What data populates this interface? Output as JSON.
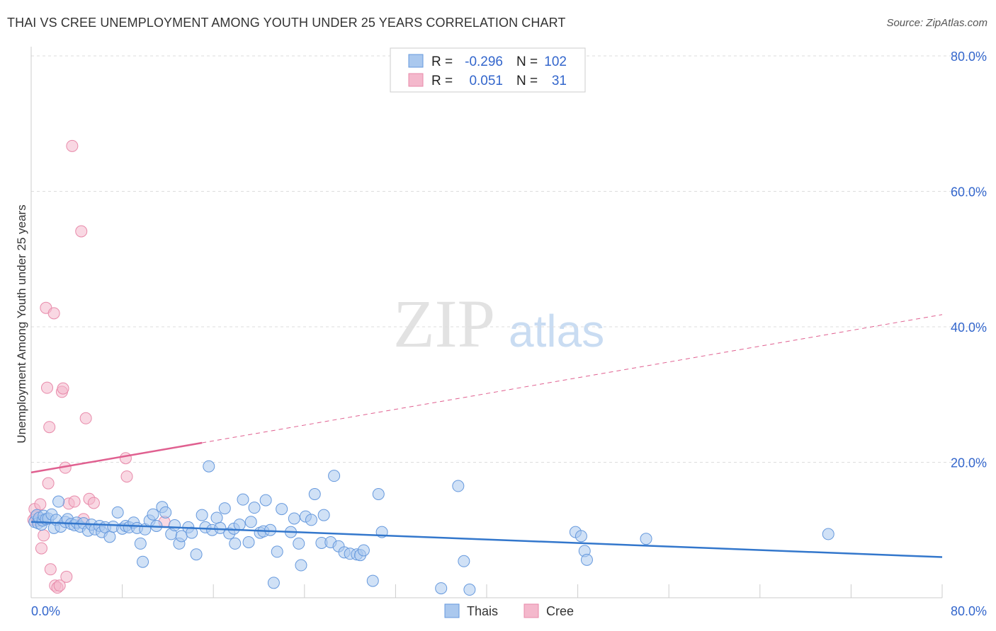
{
  "title": "THAI VS CREE UNEMPLOYMENT AMONG YOUTH UNDER 25 YEARS CORRELATION CHART",
  "source": "Source: ZipAtlas.com",
  "watermark": {
    "zip": "ZIP",
    "atlas": "atlas"
  },
  "colors": {
    "thais_fill": "#aac8ee",
    "thais_stroke": "#6699dd",
    "thais_line": "#3377cc",
    "cree_fill": "#f4b8cc",
    "cree_stroke": "#e88aaa",
    "cree_line": "#e06090",
    "value_blue": "#3366cc",
    "grid": "#dddddd"
  },
  "legend_box": {
    "rows": [
      {
        "r_label": "R =",
        "r_value": "-0.296",
        "n_label": "N =",
        "n_value": "102"
      },
      {
        "r_label": "R =",
        "r_value": "0.051",
        "n_label": "N =",
        "n_value": "31"
      }
    ]
  },
  "bottom_legend": {
    "thais": "Thais",
    "cree": "Cree"
  },
  "chart_data": {
    "type": "scatter",
    "title": "THAI VS CREE UNEMPLOYMENT AMONG YOUTH UNDER 25 YEARS CORRELATION CHART",
    "xlabel": "",
    "ylabel": "Unemployment Among Youth under 25 years",
    "xlim": [
      0,
      80
    ],
    "ylim": [
      0,
      80
    ],
    "x_tick_labels": [
      "0.0%",
      "80.0%"
    ],
    "y_tick_labels": [
      "20.0%",
      "40.0%",
      "60.0%",
      "80.0%"
    ],
    "y_ticks": [
      20,
      40,
      60,
      80
    ],
    "grid": true,
    "series": [
      {
        "name": "Thais",
        "r": -0.296,
        "n": 102,
        "trend": {
          "x": [
            0,
            80
          ],
          "y": [
            11.2,
            6.0
          ],
          "dashed_from": null
        },
        "points": [
          [
            0.3,
            11.2
          ],
          [
            0.5,
            12.2
          ],
          [
            0.6,
            11.0
          ],
          [
            0.7,
            11.8
          ],
          [
            0.9,
            10.8
          ],
          [
            1.0,
            11.4
          ],
          [
            1.1,
            12.1
          ],
          [
            1.3,
            11.6
          ],
          [
            1.5,
            11.7
          ],
          [
            1.8,
            12.3
          ],
          [
            2.0,
            10.3
          ],
          [
            2.2,
            11.5
          ],
          [
            2.4,
            14.2
          ],
          [
            2.6,
            10.5
          ],
          [
            3.0,
            11.2
          ],
          [
            3.2,
            11.6
          ],
          [
            3.5,
            10.9
          ],
          [
            3.8,
            10.7
          ],
          [
            4.0,
            11.1
          ],
          [
            4.3,
            10.5
          ],
          [
            4.6,
            11.0
          ],
          [
            5.0,
            9.9
          ],
          [
            5.3,
            10.8
          ],
          [
            5.6,
            10.1
          ],
          [
            6.0,
            10.6
          ],
          [
            6.2,
            9.7
          ],
          [
            6.5,
            10.4
          ],
          [
            6.9,
            9.0
          ],
          [
            7.2,
            10.5
          ],
          [
            7.6,
            12.6
          ],
          [
            8.0,
            10.2
          ],
          [
            8.3,
            10.6
          ],
          [
            8.6,
            10.4
          ],
          [
            9.0,
            11.1
          ],
          [
            9.3,
            10.3
          ],
          [
            9.6,
            8.0
          ],
          [
            9.8,
            5.3
          ],
          [
            10.0,
            10.1
          ],
          [
            10.4,
            11.4
          ],
          [
            10.7,
            12.3
          ],
          [
            11.0,
            10.6
          ],
          [
            11.5,
            13.4
          ],
          [
            11.8,
            12.6
          ],
          [
            12.3,
            9.4
          ],
          [
            12.6,
            10.7
          ],
          [
            13.0,
            8.0
          ],
          [
            13.2,
            9.1
          ],
          [
            13.8,
            10.4
          ],
          [
            14.1,
            9.6
          ],
          [
            14.5,
            6.4
          ],
          [
            15.0,
            12.2
          ],
          [
            15.3,
            10.4
          ],
          [
            15.6,
            19.4
          ],
          [
            15.9,
            10.0
          ],
          [
            16.3,
            11.8
          ],
          [
            16.6,
            10.3
          ],
          [
            17.0,
            13.2
          ],
          [
            17.4,
            9.5
          ],
          [
            17.8,
            10.2
          ],
          [
            17.9,
            8.0
          ],
          [
            18.3,
            10.8
          ],
          [
            18.6,
            14.5
          ],
          [
            19.1,
            8.2
          ],
          [
            19.3,
            11.2
          ],
          [
            19.6,
            13.3
          ],
          [
            20.1,
            9.6
          ],
          [
            20.4,
            9.8
          ],
          [
            20.6,
            14.4
          ],
          [
            21.0,
            10.0
          ],
          [
            21.3,
            2.2
          ],
          [
            21.6,
            6.8
          ],
          [
            22.0,
            13.1
          ],
          [
            22.8,
            9.7
          ],
          [
            23.1,
            11.7
          ],
          [
            23.5,
            8.0
          ],
          [
            23.7,
            4.8
          ],
          [
            24.1,
            12.0
          ],
          [
            24.6,
            11.5
          ],
          [
            24.9,
            15.3
          ],
          [
            25.5,
            8.1
          ],
          [
            25.7,
            12.2
          ],
          [
            26.3,
            8.2
          ],
          [
            26.6,
            18.0
          ],
          [
            27.0,
            7.6
          ],
          [
            27.5,
            6.7
          ],
          [
            28.0,
            6.5
          ],
          [
            28.6,
            6.4
          ],
          [
            28.9,
            6.3
          ],
          [
            29.2,
            7.0
          ],
          [
            30.0,
            2.5
          ],
          [
            30.5,
            15.3
          ],
          [
            30.8,
            9.7
          ],
          [
            36.0,
            1.4
          ],
          [
            37.5,
            16.5
          ],
          [
            38.0,
            5.4
          ],
          [
            38.5,
            1.2
          ],
          [
            47.8,
            9.7
          ],
          [
            48.3,
            9.1
          ],
          [
            48.6,
            6.9
          ],
          [
            48.8,
            5.6
          ],
          [
            54.0,
            8.7
          ],
          [
            70.0,
            9.4
          ]
        ]
      },
      {
        "name": "Cree",
        "r": 0.051,
        "n": 31,
        "trend": {
          "x": [
            0,
            80
          ],
          "y": [
            18.5,
            41.8
          ],
          "solid_until_x": 15.0
        },
        "points": [
          [
            0.2,
            11.5
          ],
          [
            0.3,
            13.1
          ],
          [
            0.4,
            12.0
          ],
          [
            0.6,
            11.4
          ],
          [
            0.8,
            13.8
          ],
          [
            0.9,
            7.3
          ],
          [
            1.1,
            9.2
          ],
          [
            1.3,
            42.8
          ],
          [
            1.4,
            31.0
          ],
          [
            1.6,
            25.2
          ],
          [
            1.5,
            16.9
          ],
          [
            1.7,
            4.2
          ],
          [
            2.0,
            42.0
          ],
          [
            2.1,
            1.8
          ],
          [
            2.3,
            1.5
          ],
          [
            2.5,
            1.8
          ],
          [
            2.7,
            30.4
          ],
          [
            2.8,
            30.9
          ],
          [
            3.0,
            19.2
          ],
          [
            3.1,
            3.1
          ],
          [
            3.3,
            13.9
          ],
          [
            3.6,
            66.7
          ],
          [
            3.8,
            14.2
          ],
          [
            4.4,
            54.1
          ],
          [
            4.6,
            11.6
          ],
          [
            4.8,
            26.5
          ],
          [
            5.1,
            14.6
          ],
          [
            5.5,
            14.0
          ],
          [
            8.3,
            20.6
          ],
          [
            8.4,
            17.9
          ],
          [
            11.7,
            11.2
          ]
        ]
      }
    ]
  }
}
